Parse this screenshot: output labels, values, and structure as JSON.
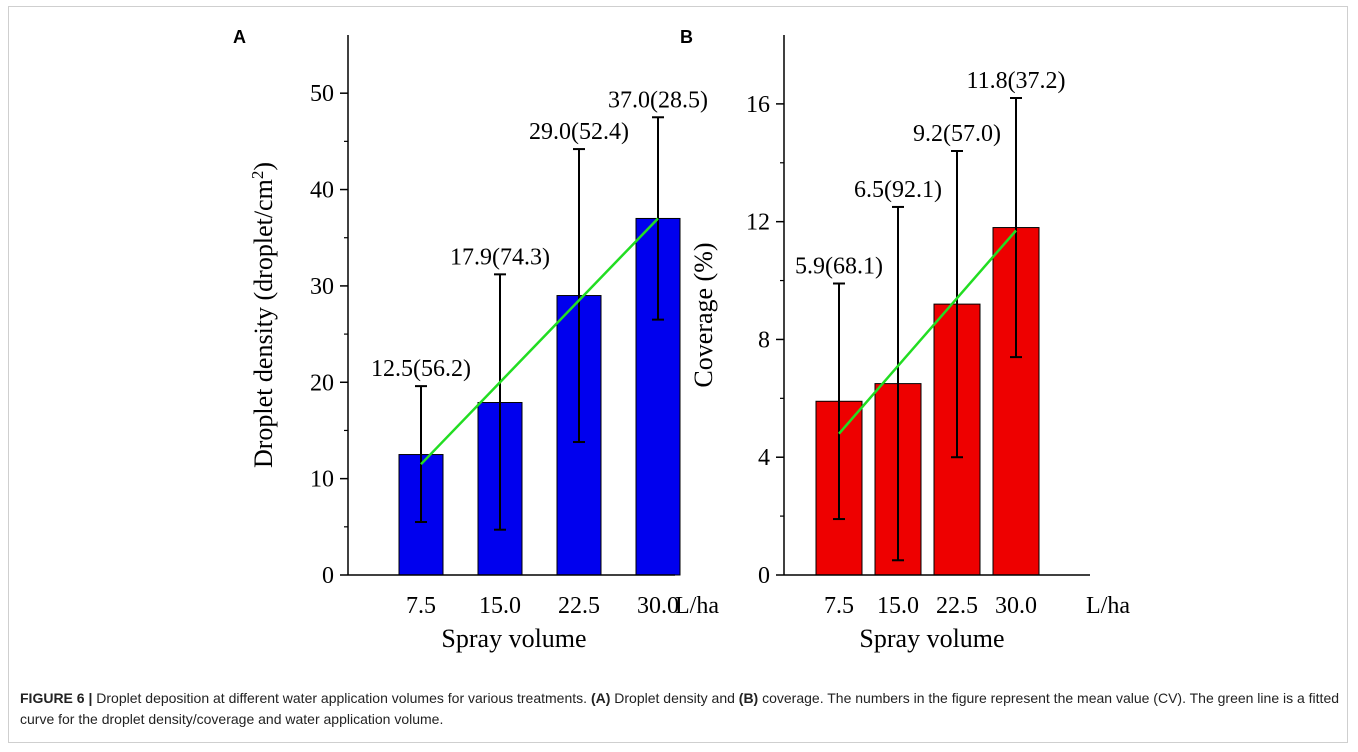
{
  "figure": {
    "caption_label": "FIGURE 6 |",
    "caption_parts": [
      " Droplet deposition at different water application volumes for various treatments. ",
      "(A)",
      " Droplet density and ",
      "(B)",
      " coverage. The numbers in the figure represent the mean value (CV). The green line is a fitted curve for the droplet density/coverage and water application volume."
    ]
  },
  "colors": {
    "fit_line": "#22dd22",
    "axis": "#000000"
  },
  "chart_data": [
    {
      "type": "bar",
      "panel_label": "A",
      "categories": [
        "7.5",
        "15.0",
        "22.5",
        "30.0"
      ],
      "x_unit": "L/ha",
      "xlabel": "Spray volume",
      "ylabel": "Droplet density (droplet/cm",
      "ylabel_sup": "2",
      "ylabel_end": ")",
      "ylim": [
        0,
        55
      ],
      "yticks": [
        0,
        10,
        20,
        30,
        40,
        50
      ],
      "values": [
        12.5,
        17.9,
        29.0,
        37.0
      ],
      "error_high": [
        19.6,
        31.2,
        44.2,
        47.5
      ],
      "error_low": [
        5.5,
        4.7,
        13.8,
        26.5
      ],
      "data_labels": [
        "12.5(56.2)",
        "17.9(74.3)",
        "29.0(52.4)",
        "37.0(28.5)"
      ],
      "bar_color": "#0000ee",
      "fit_line": {
        "start": 11.5,
        "end": 37.0
      }
    },
    {
      "type": "bar",
      "panel_label": "B",
      "categories": [
        "7.5",
        "15.0",
        "22.5",
        "30.0"
      ],
      "x_unit": "L/ha",
      "xlabel": "Spray volume",
      "ylabel": "Coverage (%)",
      "ylim": [
        0,
        18
      ],
      "yticks": [
        0,
        4,
        8,
        12,
        16
      ],
      "values": [
        5.9,
        6.5,
        9.2,
        11.8
      ],
      "error_high": [
        9.9,
        12.5,
        14.4,
        16.2
      ],
      "error_low": [
        1.9,
        0.5,
        4.0,
        7.4
      ],
      "data_labels": [
        "5.9(68.1)",
        "6.5(92.1)",
        "9.2(57.0)",
        "11.8(37.2)"
      ],
      "bar_color": "#ee0000",
      "fit_line": {
        "start": 4.8,
        "end": 11.7
      }
    }
  ]
}
